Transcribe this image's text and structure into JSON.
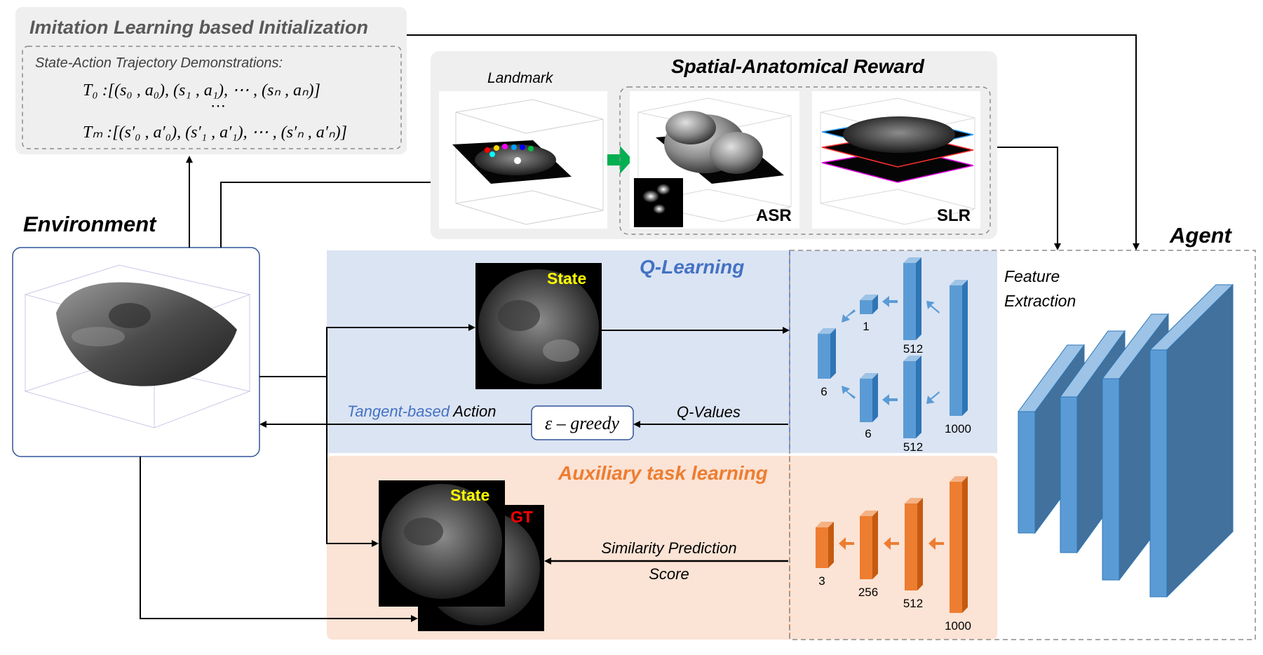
{
  "imitation": {
    "title": "Imitation Learning based Initialization",
    "subtitle": "State-Action Trajectory Demonstrations:",
    "t0": "T₀ :[(s₀ , a₀), (s₁ , a₁), ⋯ , (sₙ , aₙ)]",
    "dots": "⋯",
    "tm": "Tₘ :[(s′₀ , a′₀), (s′₁ , a′₁), ⋯ , (s′ₙ , a′ₙ)]"
  },
  "reward": {
    "title": "Spatial-Anatomical Reward",
    "landmark": "Landmark",
    "asr": "ASR",
    "slr": "SLR"
  },
  "environment": {
    "label": "Environment"
  },
  "agent": {
    "label": "Agent",
    "feature_line1": "Feature",
    "feature_line2": "Extraction"
  },
  "qlearning": {
    "title": "Q-Learning",
    "state": "State",
    "tangent": "Tangent-based",
    "action": " Action",
    "greedy": "ε – greedy",
    "qvalues": "Q-Values",
    "numbers": {
      "n1": "1",
      "n512a": "512",
      "n6a": "6",
      "n6b": "6",
      "n512b": "512",
      "n1000": "1000"
    }
  },
  "auxiliary": {
    "title": "Auxiliary task learning",
    "state": "State",
    "gt": "GT",
    "similarity_line1": "Similarity Prediction",
    "similarity_line2": "Score",
    "numbers": {
      "n3": "3",
      "n256": "256",
      "n512": "512",
      "n1000": "1000"
    }
  },
  "colors": {
    "blue_panel": "#dbe4f3",
    "orange_panel": "#fbe3d5",
    "grey_panel": "#efefef",
    "blue_block": "#5b9bd5",
    "orange_block": "#ed7d31",
    "q_title": "#4472c4",
    "aux_title": "#ed7d31",
    "state_text": "#ffff00",
    "gt_text": "#ff0000",
    "green_arrow": "#00b050"
  }
}
